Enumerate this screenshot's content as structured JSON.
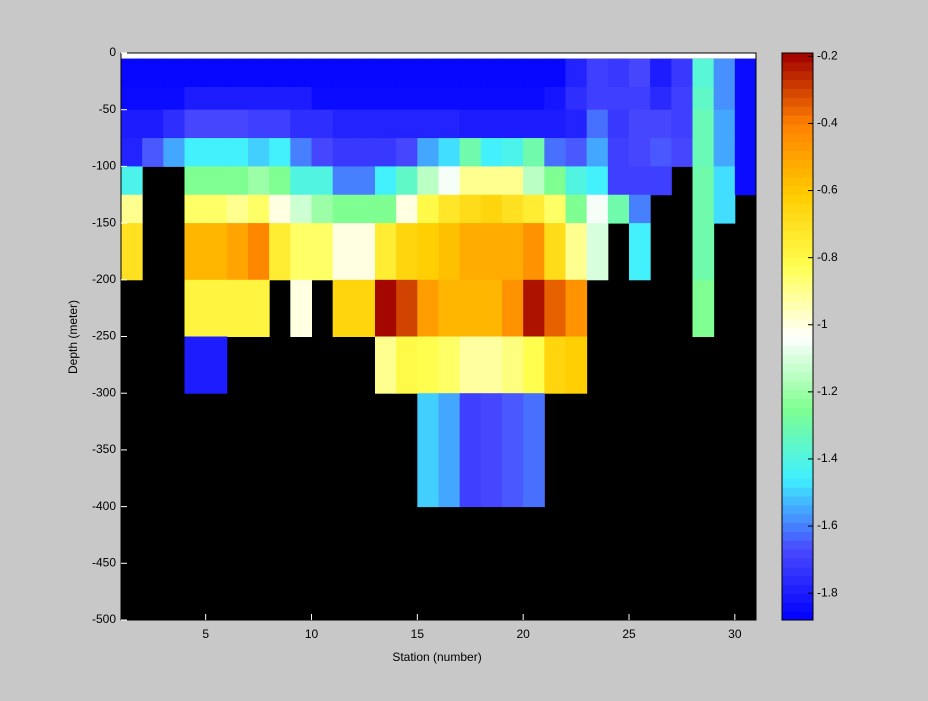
{
  "chart_data": {
    "type": "heatmap",
    "xlabel": "Station (number)",
    "ylabel": "Depth (meter)",
    "x_edges": [
      1,
      2,
      3,
      4,
      5,
      6,
      7,
      8,
      9,
      10,
      11,
      12,
      13,
      14,
      15,
      16,
      17,
      18,
      19,
      20,
      21,
      22,
      23,
      24,
      25,
      26,
      27,
      28,
      29,
      30,
      31
    ],
    "y_edges": [
      -5,
      -30,
      -50,
      -75,
      -100,
      -125,
      -150,
      -200,
      -250,
      -300,
      -400
    ],
    "values": [
      [
        -1.86,
        -1.86,
        -1.86,
        -1.86,
        -1.86,
        -1.86,
        -1.86,
        -1.86,
        -1.86,
        -1.86,
        -1.86,
        -1.86,
        -1.86,
        -1.86,
        -1.86,
        -1.86,
        -1.86,
        -1.86,
        -1.86,
        -1.86,
        -1.86,
        -1.78,
        -1.7,
        -1.72,
        -1.68,
        -1.8,
        -1.72,
        -1.38,
        -1.58,
        -1.85
      ],
      [
        -1.85,
        -1.85,
        -1.85,
        -1.8,
        -1.8,
        -1.8,
        -1.8,
        -1.8,
        -1.8,
        -1.85,
        -1.85,
        -1.85,
        -1.85,
        -1.85,
        -1.85,
        -1.85,
        -1.85,
        -1.85,
        -1.85,
        -1.85,
        -1.82,
        -1.75,
        -1.7,
        -1.7,
        -1.7,
        -1.76,
        -1.7,
        -1.35,
        -1.58,
        -1.85
      ],
      [
        -1.8,
        -1.8,
        -1.75,
        -1.68,
        -1.68,
        -1.68,
        -1.7,
        -1.7,
        -1.75,
        -1.75,
        -1.78,
        -1.78,
        -1.78,
        -1.78,
        -1.78,
        -1.78,
        -1.8,
        -1.8,
        -1.8,
        -1.8,
        -1.8,
        -1.78,
        -1.62,
        -1.72,
        -1.68,
        -1.68,
        -1.7,
        -1.32,
        -1.55,
        -1.85
      ],
      [
        -1.78,
        -1.65,
        -1.55,
        -1.45,
        -1.45,
        -1.45,
        -1.5,
        -1.45,
        -1.6,
        -1.68,
        -1.72,
        -1.72,
        -1.72,
        -1.68,
        -1.55,
        -1.48,
        -1.3,
        -1.45,
        -1.42,
        -1.3,
        -1.62,
        -1.65,
        -1.55,
        -1.7,
        -1.68,
        -1.65,
        -1.68,
        -1.32,
        -1.55,
        -1.85
      ],
      [
        -1.42,
        null,
        null,
        -1.25,
        -1.25,
        -1.25,
        -1.2,
        -1.25,
        -1.4,
        -1.4,
        -1.6,
        -1.6,
        -1.45,
        -1.35,
        -1.15,
        -1.05,
        -0.9,
        -0.9,
        -0.9,
        -1.15,
        -1.25,
        -1.4,
        -1.45,
        -1.7,
        -1.7,
        -1.7,
        null,
        -1.3,
        -1.48,
        -1.85
      ],
      [
        -0.9,
        null,
        null,
        -0.85,
        -0.85,
        -0.9,
        -0.85,
        -1.0,
        -1.12,
        -1.2,
        -1.25,
        -1.25,
        -1.25,
        -1.0,
        -0.8,
        -0.72,
        -0.68,
        -0.65,
        -0.7,
        -0.75,
        -0.85,
        -1.25,
        -1.05,
        -1.3,
        -1.6,
        null,
        null,
        -1.3,
        -1.48,
        null
      ],
      [
        -0.7,
        null,
        null,
        -0.55,
        -0.55,
        -0.5,
        -0.42,
        -0.75,
        -0.85,
        -0.85,
        -1.0,
        -1.0,
        -0.75,
        -0.65,
        -0.62,
        -0.58,
        -0.52,
        -0.52,
        -0.52,
        -0.45,
        -0.68,
        -0.9,
        -1.1,
        null,
        -1.45,
        null,
        null,
        -1.3,
        null,
        null
      ],
      [
        null,
        null,
        null,
        -0.78,
        -0.78,
        -0.78,
        -0.78,
        null,
        -1.0,
        null,
        -0.65,
        -0.65,
        -0.2,
        -0.3,
        -0.48,
        -0.55,
        -0.55,
        -0.55,
        -0.45,
        -0.22,
        -0.35,
        -0.45,
        null,
        null,
        null,
        null,
        null,
        -1.25,
        null,
        null
      ],
      [
        null,
        null,
        null,
        -1.8,
        -1.8,
        null,
        null,
        null,
        null,
        null,
        null,
        null,
        -0.9,
        -0.8,
        -0.82,
        -0.85,
        -0.92,
        -0.92,
        -0.88,
        -0.82,
        -0.65,
        -0.62,
        null,
        null,
        null,
        null,
        null,
        null,
        null,
        null
      ],
      [
        null,
        null,
        null,
        null,
        null,
        null,
        null,
        null,
        null,
        null,
        null,
        null,
        null,
        null,
        -1.5,
        -1.55,
        -1.7,
        -1.68,
        -1.65,
        -1.62,
        null,
        null,
        null,
        null,
        null,
        null,
        null,
        null,
        null,
        null
      ]
    ],
    "xlim": [
      1,
      31
    ],
    "xticks": [
      5,
      10,
      15,
      20,
      25,
      30
    ],
    "ylim": [
      -500,
      0
    ],
    "yticks": [
      -500,
      -450,
      -400,
      -350,
      -300,
      -250,
      -200,
      -150,
      -100,
      -50,
      0
    ],
    "clim": [
      -1.88,
      -0.19
    ],
    "cticks": [
      -1.8,
      -1.6,
      -1.4,
      -1.2,
      -1,
      -0.8,
      -0.6,
      -0.4,
      -0.2
    ],
    "colormap": [
      "#0000ff",
      "#4a4aff",
      "#40f0ff",
      "#80ff90",
      "#ffffff",
      "#ffff50",
      "#ffcc00",
      "#ff8000",
      "#a00000"
    ],
    "nan_color": "#000000"
  }
}
